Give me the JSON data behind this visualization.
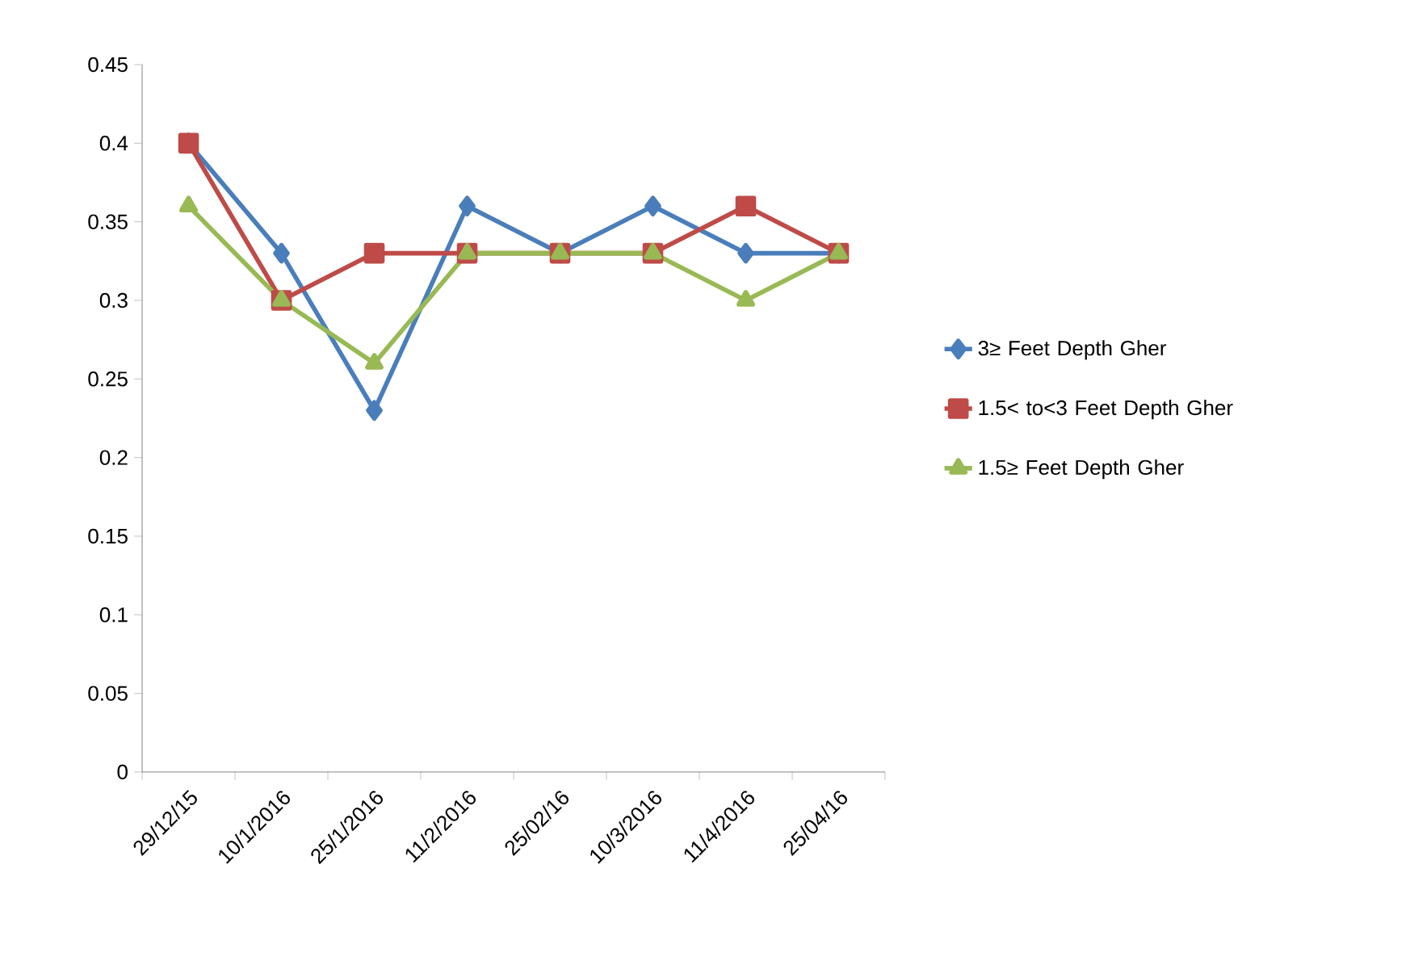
{
  "chart_data": {
    "type": "line",
    "categories": [
      "29/12/15",
      "10/1/2016",
      "25/1/2016",
      "11/2/2016",
      "25/02/16",
      "10/3/2016",
      "11/4/2016",
      "25/04/16"
    ],
    "series": [
      {
        "name": "3≥ Feet Depth Gher",
        "color": "#4a7ebb",
        "marker": "diamond",
        "values": [
          0.4,
          0.33,
          0.23,
          0.36,
          0.33,
          0.36,
          0.33,
          0.33
        ]
      },
      {
        "name": "1.5< to<3 Feet Depth Gher",
        "color": "#be4b48",
        "marker": "square",
        "values": [
          0.4,
          0.3,
          0.33,
          0.33,
          0.33,
          0.33,
          0.36,
          0.33
        ]
      },
      {
        "name": "1.5≥ Feet Depth Gher",
        "color": "#98b954",
        "marker": "triangle",
        "values": [
          0.36,
          0.3,
          0.26,
          0.33,
          0.33,
          0.33,
          0.3,
          0.33
        ]
      }
    ],
    "ylim": [
      0,
      0.45
    ],
    "yticks": [
      0,
      0.05,
      0.1,
      0.15,
      0.2,
      0.25,
      0.3,
      0.35,
      0.4,
      0.45
    ],
    "grid": false,
    "legend": "right",
    "line_style": "solid"
  }
}
